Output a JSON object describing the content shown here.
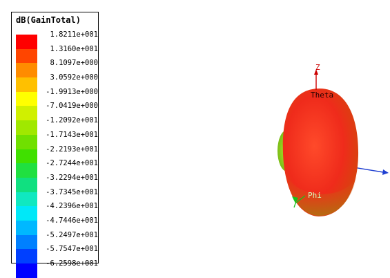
{
  "legend": {
    "title": "dB(GainTotal)",
    "entries": [
      {
        "value": "1.8211e+001",
        "color": "#ff0000"
      },
      {
        "value": "1.3160e+001",
        "color": "#ff4500"
      },
      {
        "value": "8.1097e+000",
        "color": "#ff8c00"
      },
      {
        "value": "3.0592e+000",
        "color": "#ffc000"
      },
      {
        "value": "-1.9913e+000",
        "color": "#ffff00"
      },
      {
        "value": "-7.0419e+000",
        "color": "#d0f000"
      },
      {
        "value": "-1.2092e+001",
        "color": "#a0e800"
      },
      {
        "value": "-1.7143e+001",
        "color": "#70e000"
      },
      {
        "value": "-2.2193e+001",
        "color": "#40e000"
      },
      {
        "value": "-2.7244e+001",
        "color": "#20e040"
      },
      {
        "value": "-3.2294e+001",
        "color": "#10e080"
      },
      {
        "value": "-3.7345e+001",
        "color": "#10e8c0"
      },
      {
        "value": "-4.2396e+001",
        "color": "#00e8f8"
      },
      {
        "value": "-4.7446e+001",
        "color": "#00b8ff"
      },
      {
        "value": "-5.2497e+001",
        "color": "#0080ff"
      },
      {
        "value": "-5.7547e+001",
        "color": "#0040ff"
      },
      {
        "value": "-6.2598e+001",
        "color": "#0000ff"
      }
    ]
  },
  "axes": {
    "z_label": "Z",
    "theta_label": "Theta",
    "phi_label": "Phi"
  },
  "colors": {
    "pattern_main": "#ee2a1c",
    "pattern_side": "#8fd11f",
    "z_axis": "#cc0000",
    "x_axis": "#1f3fd1",
    "phi_axis": "#16c21b"
  }
}
